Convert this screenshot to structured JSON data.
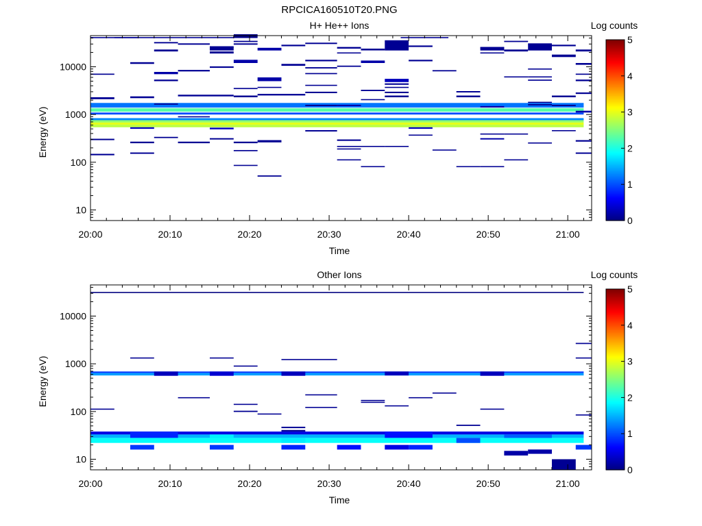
{
  "figure_title": "RPCICA160510T20.PNG",
  "colormap": [
    "#00007f",
    "#0000ff",
    "#007fff",
    "#00ffff",
    "#7fff7f",
    "#ffff00",
    "#ff7f00",
    "#ff0000",
    "#7f0000"
  ],
  "chart_data": [
    {
      "type": "heatmap",
      "title": "H+ He++ Ions",
      "xlabel": "Time",
      "ylabel": "Energy (eV)",
      "colorbar_label": "Log counts",
      "x_ticks": [
        "20:00",
        "20:10",
        "20:20",
        "20:30",
        "20:40",
        "20:50",
        "21:00"
      ],
      "x_range_minutes": [
        0,
        63
      ],
      "y_scale": "log",
      "y_range": [
        6,
        45000
      ],
      "y_ticks": [
        10,
        100,
        1000,
        10000
      ],
      "color_range": [
        0,
        5
      ],
      "color_ticks": [
        0,
        1,
        2,
        3,
        4,
        5
      ],
      "cells": [
        [
          0,
          62,
          1400,
          1750,
          1.2
        ],
        [
          0,
          62,
          1150,
          1350,
          2.3
        ],
        [
          0,
          62,
          1000,
          1100,
          1.0
        ],
        [
          0,
          62,
          760,
          840,
          1.3
        ],
        [
          0,
          62,
          680,
          760,
          2.6
        ],
        [
          0,
          62,
          610,
          680,
          3.0
        ],
        [
          0,
          62,
          540,
          610,
          2.8
        ],
        [
          0,
          6,
          40000,
          42000,
          0.1
        ],
        [
          3,
          18,
          40000,
          42000,
          0.1
        ],
        [
          39,
          45,
          40000,
          42000,
          0.1
        ],
        [
          0,
          3,
          6800,
          7200,
          0.1
        ],
        [
          0,
          3,
          2100,
          2300,
          0.1
        ],
        [
          0,
          3,
          290,
          310,
          0.1
        ],
        [
          0,
          3,
          140,
          150,
          0.1
        ],
        [
          5,
          8,
          11500,
          12500,
          0.1
        ],
        [
          5,
          8,
          2200,
          2400,
          0.1
        ],
        [
          5,
          8,
          500,
          540,
          0.3
        ],
        [
          5,
          8,
          250,
          270,
          0.1
        ],
        [
          5,
          8,
          150,
          160,
          0.1
        ],
        [
          8,
          11,
          31000,
          33000,
          0.1
        ],
        [
          8,
          11,
          21000,
          23000,
          0.1
        ],
        [
          8,
          11,
          7000,
          7800,
          0.2
        ],
        [
          8,
          11,
          5000,
          5400,
          0.1
        ],
        [
          8,
          11,
          1600,
          1700,
          0.1
        ],
        [
          8,
          11,
          320,
          340,
          0.1
        ],
        [
          11,
          15,
          29000,
          31000,
          0.1
        ],
        [
          11,
          15,
          8000,
          8600,
          0.1
        ],
        [
          11,
          15,
          2400,
          2600,
          0.1
        ],
        [
          11,
          15,
          880,
          920,
          0.1
        ],
        [
          11,
          15,
          250,
          270,
          0.1
        ],
        [
          15,
          18,
          25000,
          27000,
          0.1
        ],
        [
          15,
          18,
          19000,
          21000,
          0.1
        ],
        [
          15,
          18,
          9500,
          10200,
          0.1
        ],
        [
          15,
          18,
          2400,
          2600,
          0.1
        ],
        [
          15,
          18,
          490,
          530,
          0.3
        ],
        [
          15,
          18,
          300,
          320,
          0.1
        ],
        [
          15,
          18,
          22000,
          26000,
          0.1
        ],
        [
          18,
          21,
          33000,
          35000,
          0.1
        ],
        [
          18,
          21,
          29000,
          31000,
          0.1
        ],
        [
          18,
          21,
          12000,
          14000,
          0.2
        ],
        [
          18,
          21,
          3400,
          3600,
          0.1
        ],
        [
          18,
          21,
          2300,
          2500,
          0.1
        ],
        [
          18,
          21,
          250,
          270,
          0.1
        ],
        [
          18,
          21,
          170,
          180,
          0.1
        ],
        [
          18,
          21,
          85,
          88,
          0.1
        ],
        [
          18,
          21,
          40000,
          48000,
          0.05
        ],
        [
          21,
          24,
          22000,
          25000,
          0.2
        ],
        [
          21,
          24,
          5000,
          6000,
          0.2
        ],
        [
          21,
          24,
          3600,
          3800,
          0.1
        ],
        [
          21,
          24,
          2500,
          2700,
          0.1
        ],
        [
          21,
          24,
          260,
          290,
          0.1
        ],
        [
          21,
          24,
          50,
          53,
          0.1
        ],
        [
          24,
          27,
          27000,
          29000,
          0.1
        ],
        [
          24,
          27,
          10500,
          11500,
          0.1
        ],
        [
          24,
          27,
          2500,
          2700,
          0.1
        ],
        [
          27,
          31,
          30000,
          32000,
          0.1
        ],
        [
          27,
          31,
          13000,
          14000,
          0.1
        ],
        [
          27,
          31,
          9200,
          9800,
          0.1
        ],
        [
          27,
          31,
          7000,
          7400,
          0.1
        ],
        [
          27,
          31,
          4000,
          4200,
          0.1
        ],
        [
          27,
          31,
          2800,
          3000,
          0.1
        ],
        [
          27,
          31,
          1500,
          1600,
          0.1
        ],
        [
          27,
          31,
          440,
          470,
          0.1
        ],
        [
          31,
          34,
          24000,
          26000,
          0.1
        ],
        [
          31,
          34,
          19000,
          20000,
          0.1
        ],
        [
          31,
          34,
          10000,
          10600,
          0.1
        ],
        [
          31,
          34,
          1500,
          1600,
          0.2
        ],
        [
          31,
          34,
          280,
          300,
          0.1
        ],
        [
          31,
          34,
          210,
          220,
          0.1
        ],
        [
          31,
          34,
          185,
          195,
          0.1
        ],
        [
          31,
          34,
          110,
          115,
          0.1
        ],
        [
          34,
          37,
          22000,
          24000,
          0.1
        ],
        [
          34,
          37,
          12000,
          13500,
          0.2
        ],
        [
          34,
          37,
          3100,
          3300,
          0.1
        ],
        [
          34,
          37,
          2000,
          2100,
          0.1
        ],
        [
          34,
          37,
          80,
          83,
          0.1
        ],
        [
          34,
          37,
          210,
          220,
          0.1
        ],
        [
          37,
          40,
          4800,
          5600,
          0.3
        ],
        [
          37,
          40,
          4200,
          4500,
          0.1
        ],
        [
          37,
          40,
          3600,
          3800,
          0.1
        ],
        [
          37,
          40,
          2800,
          3000,
          0.1
        ],
        [
          37,
          40,
          2300,
          2500,
          0.1
        ],
        [
          37,
          40,
          22000,
          36000,
          0.1
        ],
        [
          37,
          40,
          210,
          220,
          0.1
        ],
        [
          40,
          43,
          26000,
          28000,
          0.1
        ],
        [
          40,
          43,
          13000,
          14000,
          0.1
        ],
        [
          40,
          43,
          500,
          540,
          0.3
        ],
        [
          40,
          43,
          360,
          380,
          0.1
        ],
        [
          43,
          46,
          8000,
          8500,
          0.1
        ],
        [
          43,
          46,
          180,
          185,
          0.1
        ],
        [
          46,
          49,
          2900,
          3100,
          0.1
        ],
        [
          46,
          49,
          2300,
          2500,
          0.1
        ],
        [
          46,
          49,
          80,
          83,
          0.1
        ],
        [
          49,
          52,
          24000,
          26000,
          0.1
        ],
        [
          49,
          52,
          19000,
          20000,
          0.1
        ],
        [
          49,
          52,
          1400,
          1500,
          0.2
        ],
        [
          49,
          52,
          380,
          400,
          0.1
        ],
        [
          49,
          52,
          300,
          320,
          0.2
        ],
        [
          49,
          52,
          80,
          83,
          0.1
        ],
        [
          49,
          52,
          22000,
          26000,
          0.1
        ],
        [
          52,
          55,
          33000,
          35000,
          0.1
        ],
        [
          52,
          55,
          21000,
          23000,
          0.1
        ],
        [
          52,
          55,
          6000,
          6300,
          0.1
        ],
        [
          52,
          55,
          380,
          400,
          0.1
        ],
        [
          52,
          55,
          110,
          115,
          0.1
        ],
        [
          55,
          58,
          8800,
          9200,
          0.1
        ],
        [
          55,
          58,
          6000,
          6300,
          0.1
        ],
        [
          55,
          58,
          5100,
          5400,
          0.1
        ],
        [
          55,
          58,
          1750,
          1850,
          0.1
        ],
        [
          55,
          58,
          1550,
          1650,
          0.1
        ],
        [
          55,
          58,
          250,
          260,
          0.1
        ],
        [
          55,
          58,
          22000,
          31000,
          0.1
        ],
        [
          58,
          61,
          27000,
          29000,
          0.1
        ],
        [
          58,
          61,
          16000,
          18000,
          0.1
        ],
        [
          58,
          61,
          2300,
          2500,
          0.1
        ],
        [
          58,
          61,
          1500,
          1600,
          0.1
        ],
        [
          58,
          61,
          450,
          470,
          0.1
        ],
        [
          61,
          63,
          21000,
          23000,
          0.1
        ],
        [
          61,
          63,
          11000,
          12000,
          0.1
        ],
        [
          61,
          63,
          6800,
          7200,
          0.1
        ],
        [
          61,
          63,
          5000,
          5400,
          0.1
        ],
        [
          61,
          63,
          2700,
          2900,
          0.1
        ],
        [
          61,
          63,
          1100,
          1200,
          0.2
        ],
        [
          61,
          63,
          270,
          290,
          0.1
        ],
        [
          61,
          63,
          150,
          160,
          0.1
        ]
      ]
    },
    {
      "type": "heatmap",
      "title": "Other Ions",
      "xlabel": "Time",
      "ylabel": "Energy (eV)",
      "colorbar_label": "Log counts",
      "x_ticks": [
        "20:00",
        "20:10",
        "20:20",
        "20:30",
        "20:40",
        "20:50",
        "21:00"
      ],
      "x_range_minutes": [
        0,
        63
      ],
      "y_scale": "log",
      "y_range": [
        6,
        45000
      ],
      "y_ticks": [
        10,
        100,
        1000,
        10000
      ],
      "color_range": [
        0,
        5
      ],
      "color_ticks": [
        0,
        1,
        2,
        3,
        4,
        5
      ],
      "cells": [
        [
          0,
          62,
          640,
          690,
          0.9
        ],
        [
          0,
          62,
          570,
          640,
          1.4
        ],
        [
          8,
          11,
          560,
          690,
          0.3
        ],
        [
          15,
          18,
          560,
          690,
          0.4
        ],
        [
          24,
          27,
          560,
          690,
          0.3
        ],
        [
          37,
          40,
          570,
          690,
          0.3
        ],
        [
          49,
          52,
          560,
          690,
          0.3
        ],
        [
          0,
          62,
          31000,
          32000,
          0
        ],
        [
          0,
          62,
          33,
          38,
          0.5
        ],
        [
          0,
          62,
          28,
          33,
          1.5
        ],
        [
          0,
          62,
          22,
          28,
          1.9
        ],
        [
          5,
          11,
          28,
          38,
          0.8
        ],
        [
          15,
          18,
          28,
          33,
          1.8
        ],
        [
          24,
          27,
          22,
          28,
          1.8
        ],
        [
          37,
          43,
          28,
          38,
          0.7
        ],
        [
          46,
          49,
          22,
          28,
          1.0
        ],
        [
          52,
          58,
          28,
          33,
          1.1
        ],
        [
          5,
          8,
          16,
          20,
          0.9
        ],
        [
          15,
          18,
          16,
          20,
          0.9
        ],
        [
          24,
          27,
          16,
          20,
          0.8
        ],
        [
          31,
          34,
          16,
          20,
          0.7
        ],
        [
          37,
          40,
          16,
          20,
          0.5
        ],
        [
          40,
          43,
          16,
          20,
          0.8
        ],
        [
          61,
          63,
          16,
          20,
          0.9
        ],
        [
          55,
          58,
          13,
          16,
          0.2
        ],
        [
          58,
          61,
          6,
          10,
          0.1
        ],
        [
          52,
          55,
          12,
          15,
          0.2
        ],
        [
          0,
          3,
          110,
          115,
          0.1
        ],
        [
          5,
          8,
          1300,
          1360,
          0.1
        ],
        [
          11,
          15,
          190,
          200,
          0.1
        ],
        [
          15,
          18,
          1300,
          1360,
          0.1
        ],
        [
          18,
          21,
          880,
          920,
          0.1
        ],
        [
          18,
          21,
          140,
          145,
          0.1
        ],
        [
          18,
          21,
          98,
          104,
          0.1
        ],
        [
          21,
          24,
          88,
          91,
          0.1
        ],
        [
          24,
          31,
          1200,
          1260,
          0.1
        ],
        [
          27,
          31,
          220,
          230,
          0.1
        ],
        [
          27,
          31,
          120,
          125,
          0.1
        ],
        [
          24,
          27,
          45,
          48,
          0.1
        ],
        [
          24,
          27,
          38,
          41,
          0.1
        ],
        [
          34,
          37,
          170,
          175,
          0.1
        ],
        [
          34,
          37,
          155,
          160,
          0.1
        ],
        [
          37,
          40,
          130,
          135,
          0.1
        ],
        [
          40,
          43,
          190,
          200,
          0.1
        ],
        [
          43,
          46,
          240,
          250,
          0.1
        ],
        [
          46,
          49,
          50,
          53,
          0.1
        ],
        [
          49,
          52,
          110,
          115,
          0.1
        ],
        [
          61,
          63,
          2600,
          2750,
          0.1
        ],
        [
          61,
          63,
          1300,
          1360,
          0.1
        ],
        [
          61,
          63,
          85,
          87,
          0.1
        ]
      ]
    }
  ]
}
